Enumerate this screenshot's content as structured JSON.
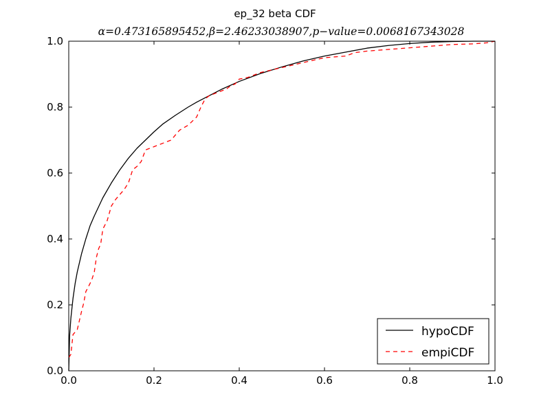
{
  "chart_data": {
    "type": "line",
    "title": "ep_32 beta CDF",
    "subtitle": "α=0.473165895452,β=2.46233038907,p−value=0.0068167343028",
    "xlabel": "",
    "ylabel": "",
    "xlim": [
      0.0,
      1.0
    ],
    "ylim": [
      0.0,
      1.0
    ],
    "x_ticks": [
      "0.0",
      "0.2",
      "0.4",
      "0.6",
      "0.8",
      "1.0"
    ],
    "y_ticks": [
      "0.0",
      "0.2",
      "0.4",
      "0.6",
      "0.8",
      "1.0"
    ],
    "grid": false,
    "legend_position": "lower-right",
    "series": [
      {
        "name": "hypoCDF",
        "style": "solid",
        "color": "#000000",
        "x": [
          0.0,
          0.002,
          0.005,
          0.01,
          0.015,
          0.02,
          0.03,
          0.04,
          0.05,
          0.06,
          0.08,
          0.1,
          0.12,
          0.14,
          0.16,
          0.18,
          0.2,
          0.22,
          0.25,
          0.28,
          0.3,
          0.33,
          0.36,
          0.4,
          0.45,
          0.5,
          0.55,
          0.6,
          0.65,
          0.7,
          0.75,
          0.8,
          0.85,
          0.9,
          0.95,
          1.0
        ],
        "y": [
          0.0,
          0.105,
          0.16,
          0.22,
          0.265,
          0.3,
          0.355,
          0.4,
          0.44,
          0.47,
          0.525,
          0.57,
          0.61,
          0.645,
          0.675,
          0.7,
          0.725,
          0.748,
          0.775,
          0.8,
          0.815,
          0.835,
          0.855,
          0.878,
          0.902,
          0.922,
          0.94,
          0.955,
          0.967,
          0.979,
          0.987,
          0.993,
          0.997,
          0.999,
          1.0,
          1.0
        ]
      },
      {
        "name": "empiCDF",
        "style": "dashed",
        "color": "#ff0000",
        "x": [
          0.0,
          0.005,
          0.01,
          0.02,
          0.03,
          0.035,
          0.04,
          0.05,
          0.055,
          0.06,
          0.065,
          0.07,
          0.075,
          0.08,
          0.09,
          0.1,
          0.11,
          0.13,
          0.14,
          0.15,
          0.16,
          0.17,
          0.18,
          0.2,
          0.22,
          0.24,
          0.26,
          0.28,
          0.3,
          0.31,
          0.32,
          0.33,
          0.35,
          0.37,
          0.38,
          0.39,
          0.4,
          0.42,
          0.45,
          0.5,
          0.55,
          0.6,
          0.65,
          0.67,
          0.7,
          0.75,
          0.8,
          0.85,
          0.9,
          0.95,
          0.98,
          1.0
        ],
        "y": [
          0.04,
          0.05,
          0.11,
          0.125,
          0.18,
          0.205,
          0.24,
          0.265,
          0.28,
          0.3,
          0.345,
          0.37,
          0.385,
          0.43,
          0.455,
          0.5,
          0.52,
          0.55,
          0.57,
          0.61,
          0.62,
          0.635,
          0.67,
          0.68,
          0.69,
          0.7,
          0.73,
          0.745,
          0.77,
          0.8,
          0.825,
          0.835,
          0.845,
          0.855,
          0.865,
          0.87,
          0.885,
          0.89,
          0.905,
          0.92,
          0.935,
          0.95,
          0.955,
          0.965,
          0.97,
          0.975,
          0.98,
          0.985,
          0.99,
          0.992,
          0.995,
          1.0
        ]
      }
    ]
  }
}
